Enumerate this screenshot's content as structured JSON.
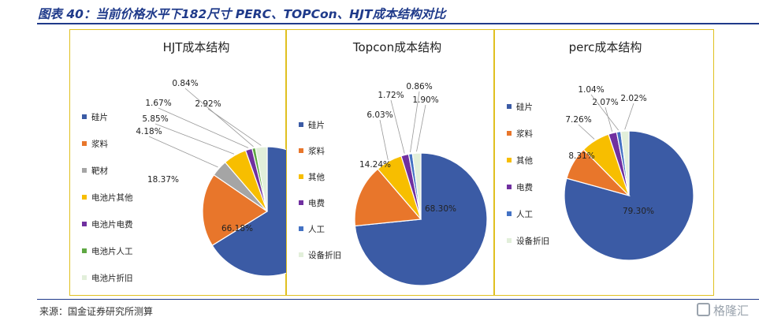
{
  "header": {
    "title": "图表 40：当前价格水平下182尺寸 PERC、TOPCon、HJT成本结构对比"
  },
  "footer": {
    "source": "来源：国金证券研究所测算",
    "watermark": "格隆汇"
  },
  "chart_data": [
    {
      "type": "pie",
      "title": "HJT成本结构",
      "categories": [
        "硅片",
        "浆料",
        "靶材",
        "电池片其他",
        "电池片电费",
        "电池片人工",
        "电池片折旧"
      ],
      "values": [
        66.18,
        18.37,
        4.18,
        5.85,
        1.67,
        0.84,
        2.92
      ],
      "value_labels": [
        "66.18%",
        "18.37%",
        "4.18%",
        "5.85%",
        "1.67%",
        "0.84%",
        "2.92%"
      ],
      "colors": [
        "#3b5ba5",
        "#e8762b",
        "#a5a5a5",
        "#f7be00",
        "#7030a0",
        "#5fa843",
        "#e2efda"
      ],
      "legend_position": "left"
    },
    {
      "type": "pie",
      "title": "Topcon成本结构",
      "categories": [
        "硅片",
        "浆料",
        "其他",
        "电费",
        "人工",
        "设备折旧"
      ],
      "values": [
        68.3,
        14.24,
        6.03,
        1.72,
        0.86,
        1.9
      ],
      "value_labels": [
        "68.30%",
        "14.24%",
        "6.03%",
        "1.72%",
        "0.86%",
        "1.90%"
      ],
      "colors": [
        "#3b5ba5",
        "#e8762b",
        "#f7be00",
        "#7030a0",
        "#4472c4",
        "#e2efda"
      ],
      "legend_position": "left"
    },
    {
      "type": "pie",
      "title": "perc成本结构",
      "categories": [
        "硅片",
        "浆料",
        "其他",
        "电费",
        "人工",
        "设备折旧"
      ],
      "values": [
        79.3,
        8.31,
        7.26,
        2.07,
        1.04,
        2.02
      ],
      "value_labels": [
        "79.30%",
        "8.31%",
        "7.26%",
        "2.07%",
        "1.04%",
        "2.02%"
      ],
      "colors": [
        "#3b5ba5",
        "#e8762b",
        "#f7be00",
        "#7030a0",
        "#4472c4",
        "#e2efda"
      ],
      "legend_position": "left"
    }
  ]
}
